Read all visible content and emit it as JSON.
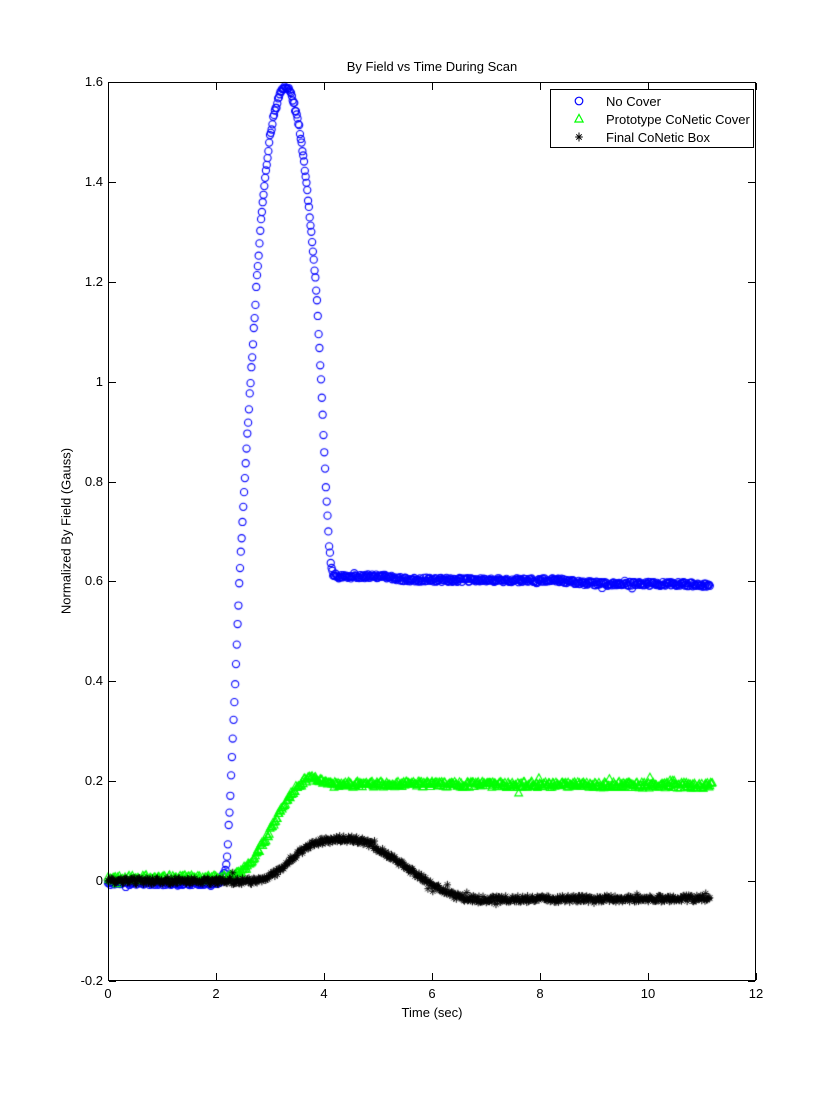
{
  "chart_data": {
    "type": "scatter",
    "title": "By Field vs Time During Scan",
    "xlabel": "Time (sec)",
    "ylabel": "Normalized By Field (Gauss)",
    "xlim": [
      0,
      12
    ],
    "ylim": [
      -0.2,
      1.6
    ],
    "xticks": [
      0,
      2,
      4,
      6,
      8,
      10,
      12
    ],
    "xtick_labels": [
      "0",
      "2",
      "4",
      "6",
      "8",
      "10",
      "12"
    ],
    "yticks": [
      -0.2,
      0,
      0.2,
      0.4,
      0.6,
      0.8,
      1,
      1.2,
      1.4,
      1.6
    ],
    "ytick_labels": [
      "-0.2",
      "0",
      "0.2",
      "0.4",
      "0.6",
      "0.8",
      "1",
      "1.2",
      "1.4",
      "1.6"
    ],
    "grid": false,
    "legend_position": "top-right",
    "axis_color": "#000000",
    "background_color": "#ffffff",
    "series": [
      {
        "name": "No Cover",
        "marker": "circle",
        "color": "#0000ff",
        "sample_dt": 0.015,
        "t_end": 11.15,
        "noise": 0.004,
        "seed": 11,
        "anchors": [
          [
            0,
            -0.004
          ],
          [
            1.5,
            -0.004
          ],
          [
            2.0,
            -0.004
          ],
          [
            2.08,
            0.0
          ],
          [
            2.14,
            0.012
          ],
          [
            2.2,
            0.035
          ],
          [
            2.26,
            0.16
          ],
          [
            2.32,
            0.31
          ],
          [
            2.38,
            0.46
          ],
          [
            2.44,
            0.62
          ],
          [
            2.52,
            0.78
          ],
          [
            2.6,
            0.93
          ],
          [
            2.68,
            1.07
          ],
          [
            2.76,
            1.21
          ],
          [
            2.84,
            1.33
          ],
          [
            2.92,
            1.42
          ],
          [
            3.0,
            1.49
          ],
          [
            3.08,
            1.54
          ],
          [
            3.16,
            1.57
          ],
          [
            3.24,
            1.588
          ],
          [
            3.3,
            1.592
          ],
          [
            3.38,
            1.578
          ],
          [
            3.46,
            1.552
          ],
          [
            3.54,
            1.51
          ],
          [
            3.62,
            1.45
          ],
          [
            3.7,
            1.37
          ],
          [
            3.78,
            1.28
          ],
          [
            3.86,
            1.18
          ],
          [
            3.92,
            1.06
          ],
          [
            3.98,
            0.92
          ],
          [
            4.04,
            0.78
          ],
          [
            4.09,
            0.68
          ],
          [
            4.13,
            0.632
          ],
          [
            4.17,
            0.614
          ],
          [
            4.25,
            0.61
          ],
          [
            5.1,
            0.61
          ],
          [
            5.45,
            0.604
          ],
          [
            6.5,
            0.603
          ],
          [
            8.4,
            0.602
          ],
          [
            8.75,
            0.597
          ],
          [
            9.3,
            0.595
          ],
          [
            10.5,
            0.595
          ],
          [
            11.15,
            0.593
          ]
        ]
      },
      {
        "name": "Prototype CoNetic Cover",
        "marker": "triangle",
        "color": "#00ff00",
        "sample_dt": 0.015,
        "t_end": 11.2,
        "noise": 0.006,
        "seed": 22,
        "anchors": [
          [
            0,
            0.006
          ],
          [
            2.2,
            0.006
          ],
          [
            2.35,
            0.01
          ],
          [
            2.5,
            0.022
          ],
          [
            2.65,
            0.04
          ],
          [
            2.8,
            0.062
          ],
          [
            2.95,
            0.09
          ],
          [
            3.1,
            0.122
          ],
          [
            3.25,
            0.152
          ],
          [
            3.4,
            0.176
          ],
          [
            3.55,
            0.193
          ],
          [
            3.68,
            0.203
          ],
          [
            3.78,
            0.206
          ],
          [
            3.9,
            0.202
          ],
          [
            4.05,
            0.196
          ],
          [
            4.25,
            0.193
          ],
          [
            5.5,
            0.194
          ],
          [
            7.0,
            0.193
          ],
          [
            9.0,
            0.192
          ],
          [
            11.2,
            0.191
          ]
        ]
      },
      {
        "name": "Final CoNetic Box",
        "marker": "asterisk",
        "color": "#000000",
        "sample_dt": 0.015,
        "t_end": 11.15,
        "noise": 0.006,
        "seed": 33,
        "anchors": [
          [
            0,
            0.0
          ],
          [
            2.75,
            0.0
          ],
          [
            2.95,
            0.006
          ],
          [
            3.15,
            0.02
          ],
          [
            3.35,
            0.04
          ],
          [
            3.55,
            0.058
          ],
          [
            3.75,
            0.071
          ],
          [
            3.95,
            0.079
          ],
          [
            4.15,
            0.083
          ],
          [
            4.4,
            0.085
          ],
          [
            4.65,
            0.082
          ],
          [
            4.85,
            0.074
          ],
          [
            5.05,
            0.062
          ],
          [
            5.25,
            0.048
          ],
          [
            5.45,
            0.033
          ],
          [
            5.65,
            0.018
          ],
          [
            5.85,
            0.004
          ],
          [
            6.05,
            -0.01
          ],
          [
            6.25,
            -0.022
          ],
          [
            6.45,
            -0.03
          ],
          [
            6.65,
            -0.035
          ],
          [
            6.9,
            -0.037
          ],
          [
            7.5,
            -0.036
          ],
          [
            8.5,
            -0.036
          ],
          [
            9.5,
            -0.035
          ],
          [
            10.5,
            -0.035
          ],
          [
            11.15,
            -0.034
          ]
        ]
      }
    ]
  }
}
